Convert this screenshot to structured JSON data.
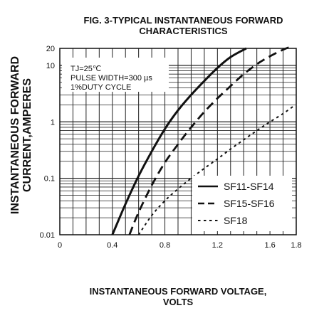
{
  "chart_data": {
    "type": "line",
    "title_lines": [
      "FIG. 3-TYPICAL INSTANTANEOUS FORWARD",
      "CHARACTERISTICS"
    ],
    "ylabel_lines": [
      "INSTANTANEOUS FORWARD",
      "CURRENT,AMPERES"
    ],
    "xlabel_lines": [
      "INSTANTANEOUS FORWARD VOLTAGE,",
      "VOLTS"
    ],
    "xlim": [
      0,
      1.8
    ],
    "ylim": [
      0.01,
      20
    ],
    "yscale": "log",
    "grid": true,
    "x_ticks": [
      {
        "value": 0,
        "label": "0"
      },
      {
        "value": 0.4,
        "label": "0.4"
      },
      {
        "value": 0.8,
        "label": "0.8"
      },
      {
        "value": 1.2,
        "label": "1.2"
      },
      {
        "value": 1.6,
        "label": "1.6"
      },
      {
        "value": 1.8,
        "label": "1.8"
      }
    ],
    "y_ticks": [
      {
        "value": 0.01,
        "label": "0.01"
      },
      {
        "value": 0.1,
        "label": "0.1"
      },
      {
        "value": 1,
        "label": "1"
      },
      {
        "value": 10,
        "label": "10"
      },
      {
        "value": 20,
        "label": "20"
      }
    ],
    "annotation_lines": [
      "TJ=25℃",
      "PULSE WIDTH=300 µs",
      "1%DUTY CYCLE"
    ],
    "legend_position": "bottom-right",
    "series": [
      {
        "name": "SF11-SF14",
        "style": "solid",
        "x": [
          0.4,
          0.5,
          0.6,
          0.7,
          0.8,
          0.9,
          1.0,
          1.1,
          1.2,
          1.3,
          1.42
        ],
        "y": [
          0.01,
          0.035,
          0.11,
          0.3,
          0.75,
          1.6,
          3.0,
          5.3,
          9.0,
          14,
          20
        ]
      },
      {
        "name": "SF15-SF16",
        "style": "dashed",
        "x": [
          0.53,
          0.6,
          0.7,
          0.8,
          0.9,
          1.0,
          1.1,
          1.2,
          1.3,
          1.4,
          1.5,
          1.6,
          1.7,
          1.75
        ],
        "y": [
          0.01,
          0.025,
          0.075,
          0.19,
          0.4,
          0.8,
          1.5,
          2.6,
          4.3,
          7.0,
          10.5,
          14.5,
          19,
          21
        ]
      },
      {
        "name": "SF18",
        "style": "dotted",
        "x": [
          0.6,
          0.7,
          0.8,
          0.9,
          1.0,
          1.1,
          1.2,
          1.3,
          1.4,
          1.5,
          1.6,
          1.7,
          1.78
        ],
        "y": [
          0.01,
          0.022,
          0.04,
          0.065,
          0.1,
          0.15,
          0.22,
          0.33,
          0.48,
          0.7,
          1.0,
          1.4,
          1.9
        ]
      }
    ]
  }
}
